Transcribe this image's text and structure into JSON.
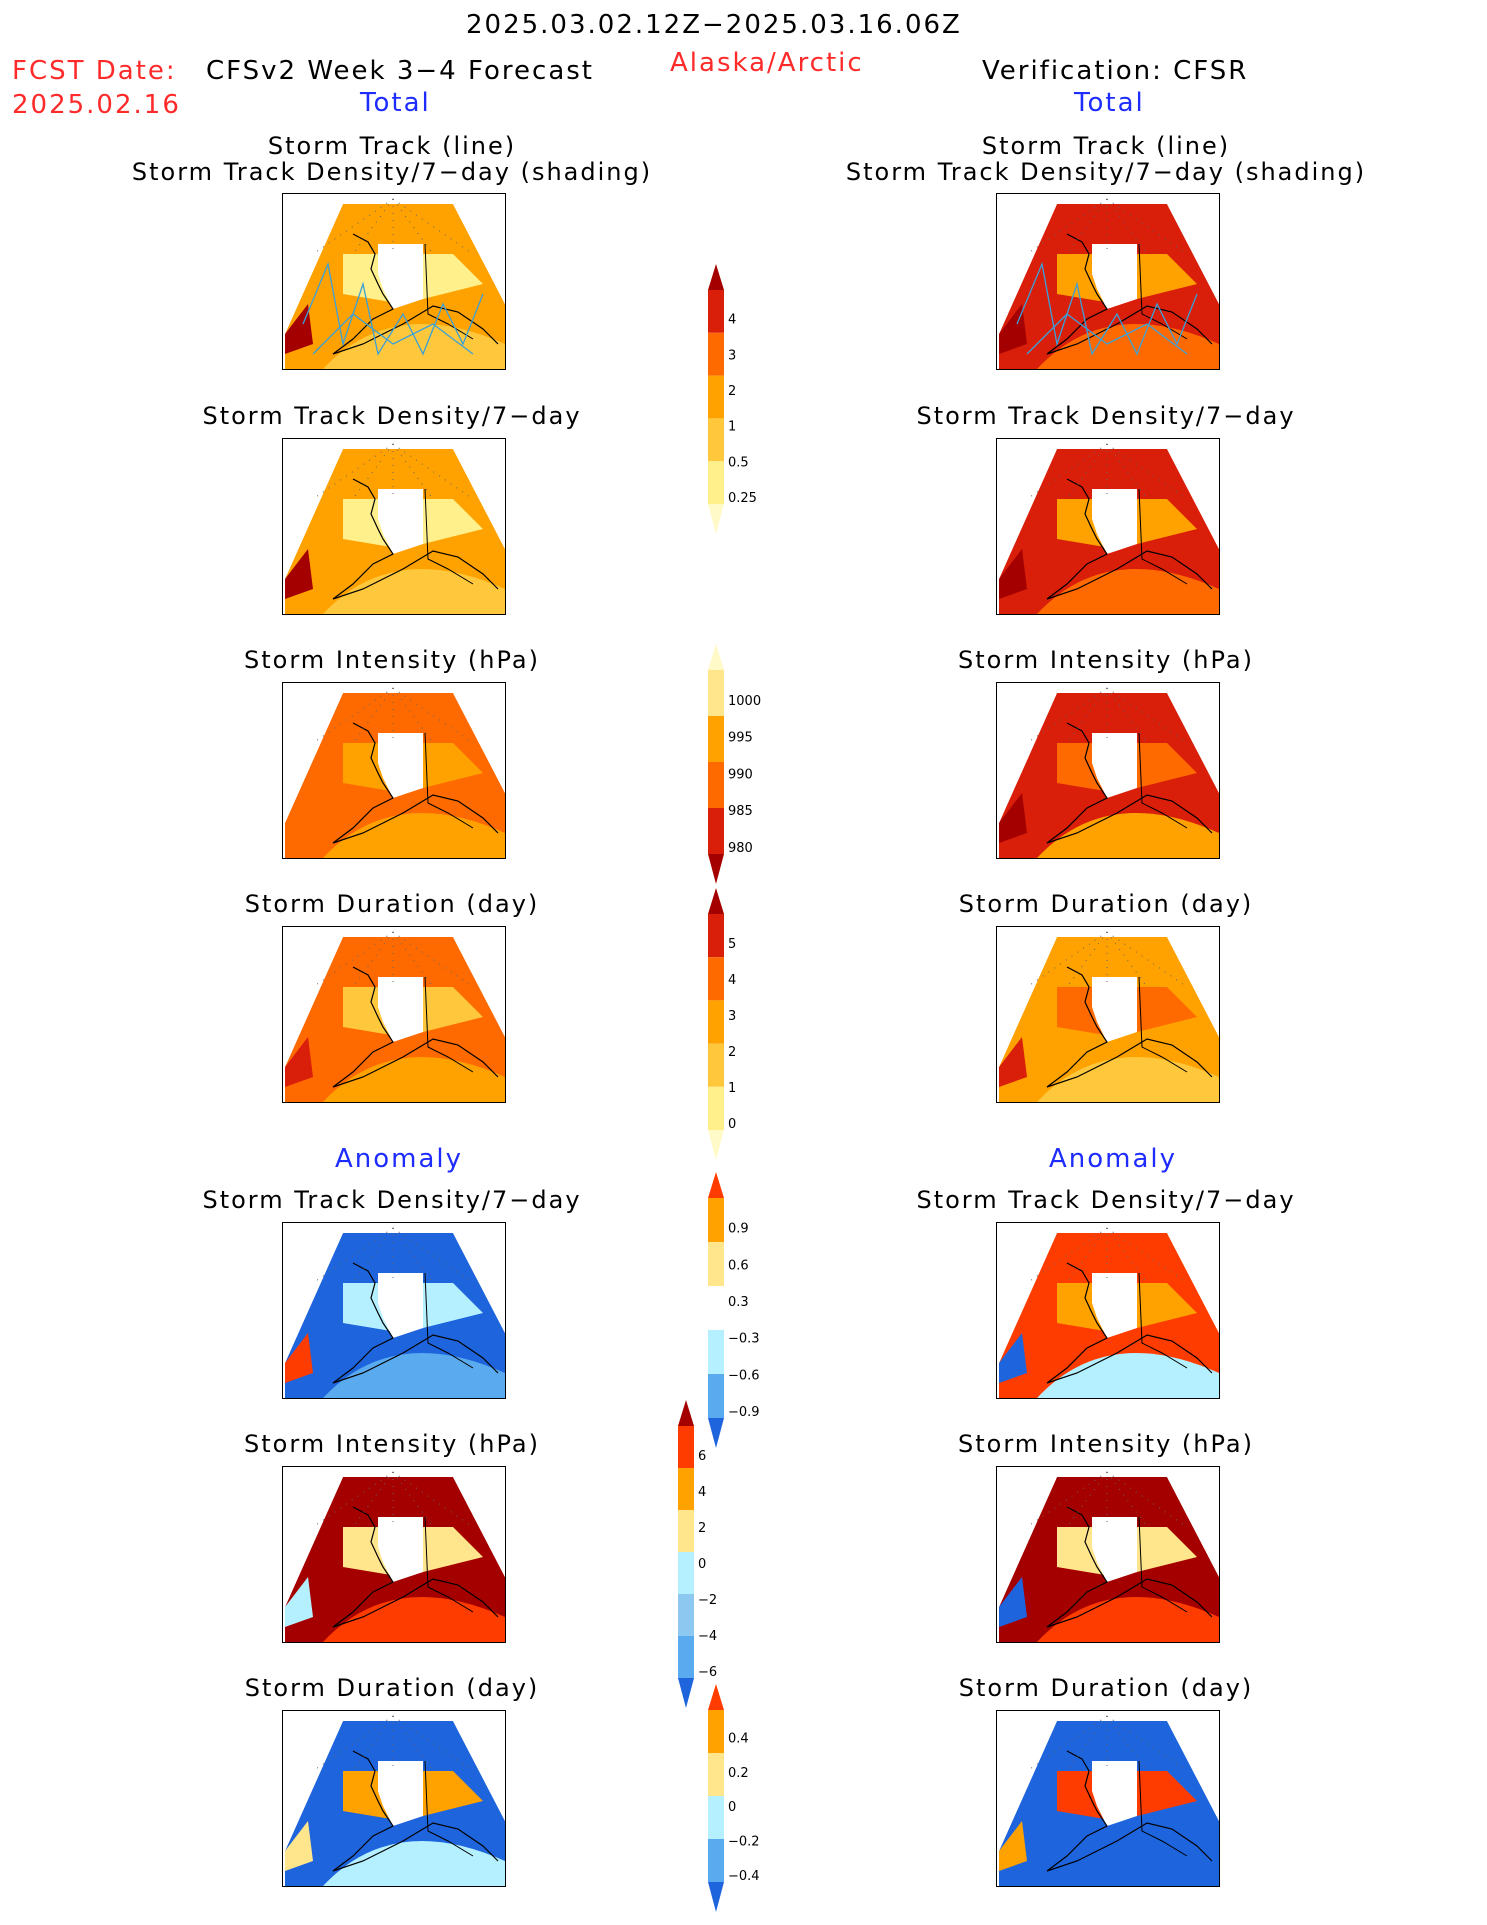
{
  "header": {
    "period": "2025.03.02.12Z−2025.03.16.06Z",
    "region": "Alaska/Arctic",
    "fcst_label": "FCST Date:",
    "fcst_date": "2025.02.16",
    "left_title": "CFSv2 Week 3−4 Forecast",
    "right_title": "Verification: CFSR"
  },
  "sections": {
    "total": "Total",
    "anomaly": "Anomaly"
  },
  "panels": {
    "track_line": "Storm Track (line)",
    "track_density_shading": "Storm Track Density/7−day (shading)",
    "track_density": "Storm Track Density/7−day",
    "intensity": "Storm Intensity (hPa)",
    "duration": "Storm Duration (day)"
  },
  "colorbars": {
    "density": {
      "labels": [
        "4",
        "3",
        "2",
        "1",
        "0.5",
        "0.25"
      ],
      "colors": [
        "#a50000",
        "#d91e0a",
        "#ff6a00",
        "#ffa200",
        "#ffc83c",
        "#fff08c",
        "#fffac8"
      ]
    },
    "intensity": {
      "labels": [
        "1000",
        "995",
        "990",
        "985",
        "980"
      ],
      "colors": [
        "#fffac8",
        "#ffe58c",
        "#ffa200",
        "#ff6a00",
        "#d91e0a",
        "#a50000"
      ]
    },
    "duration": {
      "labels": [
        "5",
        "4",
        "3",
        "2",
        "1",
        "0"
      ],
      "colors": [
        "#a50000",
        "#d91e0a",
        "#ff6a00",
        "#ffa200",
        "#ffc83c",
        "#fff08c",
        "#fffac8"
      ]
    },
    "density_anom": {
      "labels": [
        "0.9",
        "0.6",
        "0.3",
        "−0.3",
        "−0.6",
        "−0.9"
      ],
      "colors": [
        "#ff3c00",
        "#ffa200",
        "#ffe58c",
        "#ffffff",
        "#b4f0ff",
        "#5aaaf0",
        "#1e64dc"
      ]
    },
    "intensity_anom": {
      "labels": [
        "6",
        "4",
        "2",
        "0",
        "−2",
        "−4",
        "−6"
      ],
      "colors": [
        "#a50000",
        "#ff3c00",
        "#ffa200",
        "#ffe58c",
        "#b4f0ff",
        "#8cc8f0",
        "#5aaaf0",
        "#1e64dc"
      ]
    },
    "duration_anom": {
      "labels": [
        "0.4",
        "0.2",
        "0",
        "−0.2",
        "−0.4"
      ],
      "colors": [
        "#ff3c00",
        "#ffa200",
        "#ffe58c",
        "#b4f0ff",
        "#5aaaf0",
        "#1e64dc"
      ]
    }
  }
}
